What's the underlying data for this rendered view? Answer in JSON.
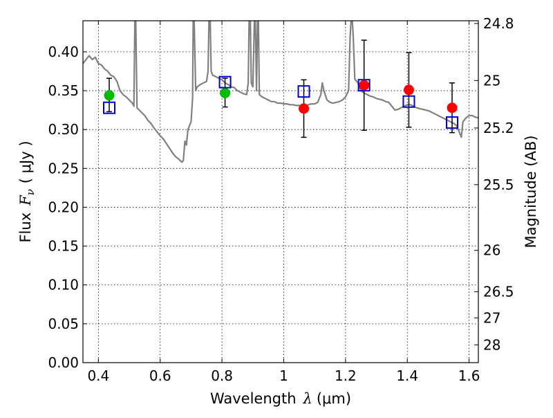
{
  "chart_data": {
    "type": "scatter",
    "xlabel": "Wavelength",
    "xlabel_symbol": "λ",
    "xlabel_unit": "(μm)",
    "ylabel": "Flux",
    "ylabel_symbol": "F",
    "ylabel_subscript": "ν",
    "ylabel_unit": "( μJy )",
    "y2label": "Magnitude (AB)",
    "xlim": [
      0.35,
      1.63
    ],
    "ylim": [
      0.0,
      0.44
    ],
    "grid": true,
    "x_ticks": [
      {
        "value": 0.4,
        "label": "0.4"
      },
      {
        "value": 0.6,
        "label": "0.6"
      },
      {
        "value": 0.8,
        "label": "0.8"
      },
      {
        "value": 1.0,
        "label": "1"
      },
      {
        "value": 1.2,
        "label": "1.2"
      },
      {
        "value": 1.4,
        "label": "1.4"
      },
      {
        "value": 1.6,
        "label": "1.6"
      }
    ],
    "y_ticks": [
      {
        "value": 0.0,
        "label": "0.00"
      },
      {
        "value": 0.05,
        "label": "0.05"
      },
      {
        "value": 0.1,
        "label": "0.10"
      },
      {
        "value": 0.15,
        "label": "0.15"
      },
      {
        "value": 0.2,
        "label": "0.20"
      },
      {
        "value": 0.25,
        "label": "0.25"
      },
      {
        "value": 0.3,
        "label": "0.30"
      },
      {
        "value": 0.35,
        "label": "0.35"
      },
      {
        "value": 0.4,
        "label": "0.40"
      }
    ],
    "y2_ticks": [
      {
        "mag": 24.8,
        "label": "24.8"
      },
      {
        "mag": 25.0,
        "label": "25"
      },
      {
        "mag": 25.2,
        "label": "25.2"
      },
      {
        "mag": 25.5,
        "label": "25.5"
      },
      {
        "mag": 26.0,
        "label": "26"
      },
      {
        "mag": 26.5,
        "label": "26.5"
      },
      {
        "mag": 27.0,
        "label": "27"
      },
      {
        "mag": 28.0,
        "label": "28"
      }
    ],
    "spectrum": {
      "color": "#808080",
      "points": [
        [
          0.35,
          0.385
        ],
        [
          0.36,
          0.39
        ],
        [
          0.37,
          0.395
        ],
        [
          0.38,
          0.39
        ],
        [
          0.39,
          0.393
        ],
        [
          0.4,
          0.385
        ],
        [
          0.41,
          0.383
        ],
        [
          0.42,
          0.378
        ],
        [
          0.43,
          0.375
        ],
        [
          0.44,
          0.37
        ],
        [
          0.45,
          0.368
        ],
        [
          0.46,
          0.362
        ],
        [
          0.47,
          0.35
        ],
        [
          0.48,
          0.345
        ],
        [
          0.49,
          0.342
        ],
        [
          0.5,
          0.338
        ],
        [
          0.51,
          0.334
        ],
        [
          0.515,
          0.33
        ],
        [
          0.518,
          0.44
        ],
        [
          0.521,
          0.44
        ],
        [
          0.525,
          0.328
        ],
        [
          0.53,
          0.326
        ],
        [
          0.54,
          0.322
        ],
        [
          0.55,
          0.318
        ],
        [
          0.56,
          0.312
        ],
        [
          0.57,
          0.308
        ],
        [
          0.58,
          0.302
        ],
        [
          0.59,
          0.297
        ],
        [
          0.6,
          0.292
        ],
        [
          0.61,
          0.288
        ],
        [
          0.62,
          0.282
        ],
        [
          0.63,
          0.276
        ],
        [
          0.64,
          0.27
        ],
        [
          0.65,
          0.265
        ],
        [
          0.66,
          0.262
        ],
        [
          0.67,
          0.258
        ],
        [
          0.675,
          0.26
        ],
        [
          0.68,
          0.285
        ],
        [
          0.685,
          0.28
        ],
        [
          0.69,
          0.3
        ],
        [
          0.7,
          0.31
        ],
        [
          0.705,
          0.34
        ],
        [
          0.707,
          0.44
        ],
        [
          0.71,
          0.44
        ],
        [
          0.715,
          0.35
        ],
        [
          0.72,
          0.355
        ],
        [
          0.73,
          0.358
        ],
        [
          0.74,
          0.36
        ],
        [
          0.75,
          0.362
        ],
        [
          0.755,
          0.375
        ],
        [
          0.758,
          0.44
        ],
        [
          0.762,
          0.44
        ],
        [
          0.765,
          0.375
        ],
        [
          0.77,
          0.37
        ],
        [
          0.78,
          0.368
        ],
        [
          0.79,
          0.366
        ],
        [
          0.8,
          0.364
        ],
        [
          0.81,
          0.36
        ],
        [
          0.82,
          0.358
        ],
        [
          0.83,
          0.355
        ],
        [
          0.84,
          0.354
        ],
        [
          0.85,
          0.35
        ],
        [
          0.86,
          0.348
        ],
        [
          0.87,
          0.346
        ],
        [
          0.88,
          0.345
        ],
        [
          0.885,
          0.36
        ],
        [
          0.888,
          0.44
        ],
        [
          0.892,
          0.44
        ],
        [
          0.895,
          0.36
        ],
        [
          0.9,
          0.355
        ],
        [
          0.905,
          0.44
        ],
        [
          0.908,
          0.44
        ],
        [
          0.912,
          0.35
        ],
        [
          0.915,
          0.44
        ],
        [
          0.918,
          0.44
        ],
        [
          0.921,
          0.345
        ],
        [
          0.93,
          0.342
        ],
        [
          0.94,
          0.34
        ],
        [
          0.95,
          0.338
        ],
        [
          0.96,
          0.336
        ],
        [
          0.97,
          0.336
        ],
        [
          0.98,
          0.334
        ],
        [
          0.99,
          0.334
        ],
        [
          1.0,
          0.333
        ],
        [
          1.01,
          0.333
        ],
        [
          1.02,
          0.332
        ],
        [
          1.03,
          0.332
        ],
        [
          1.04,
          0.331
        ],
        [
          1.05,
          0.331
        ],
        [
          1.06,
          0.33
        ],
        [
          1.07,
          0.33
        ],
        [
          1.08,
          0.332
        ],
        [
          1.09,
          0.333
        ],
        [
          1.1,
          0.333
        ],
        [
          1.11,
          0.335
        ],
        [
          1.12,
          0.345
        ],
        [
          1.125,
          0.36
        ],
        [
          1.13,
          0.35
        ],
        [
          1.14,
          0.338
        ],
        [
          1.15,
          0.335
        ],
        [
          1.16,
          0.334
        ],
        [
          1.17,
          0.335
        ],
        [
          1.18,
          0.336
        ],
        [
          1.19,
          0.338
        ],
        [
          1.2,
          0.342
        ],
        [
          1.21,
          0.35
        ],
        [
          1.215,
          0.42
        ],
        [
          1.218,
          0.44
        ],
        [
          1.222,
          0.44
        ],
        [
          1.225,
          0.42
        ],
        [
          1.23,
          0.365
        ],
        [
          1.24,
          0.36
        ],
        [
          1.25,
          0.35
        ],
        [
          1.26,
          0.347
        ],
        [
          1.27,
          0.345
        ],
        [
          1.28,
          0.343
        ],
        [
          1.29,
          0.342
        ],
        [
          1.3,
          0.34
        ],
        [
          1.31,
          0.339
        ],
        [
          1.32,
          0.338
        ],
        [
          1.33,
          0.336
        ],
        [
          1.34,
          0.335
        ],
        [
          1.35,
          0.33
        ],
        [
          1.36,
          0.325
        ],
        [
          1.37,
          0.326
        ],
        [
          1.38,
          0.328
        ],
        [
          1.39,
          0.33
        ],
        [
          1.4,
          0.332
        ],
        [
          1.41,
          0.332
        ],
        [
          1.42,
          0.33
        ],
        [
          1.43,
          0.328
        ],
        [
          1.44,
          0.327
        ],
        [
          1.45,
          0.326
        ],
        [
          1.46,
          0.325
        ],
        [
          1.47,
          0.324
        ],
        [
          1.48,
          0.322
        ],
        [
          1.49,
          0.32
        ],
        [
          1.5,
          0.318
        ],
        [
          1.51,
          0.316
        ],
        [
          1.52,
          0.314
        ],
        [
          1.53,
          0.312
        ],
        [
          1.54,
          0.31
        ],
        [
          1.55,
          0.308
        ],
        [
          1.56,
          0.305
        ],
        [
          1.57,
          0.295
        ],
        [
          1.575,
          0.29
        ],
        [
          1.58,
          0.31
        ],
        [
          1.59,
          0.315
        ],
        [
          1.6,
          0.318
        ],
        [
          1.61,
          0.318
        ],
        [
          1.62,
          0.316
        ],
        [
          1.63,
          0.315
        ]
      ]
    },
    "observed": [
      {
        "x": 0.435,
        "y": 0.344,
        "yerr_low": 0.323,
        "yerr_high": 0.366,
        "color": "#00bb00"
      },
      {
        "x": 0.81,
        "y": 0.347,
        "yerr_low": 0.329,
        "yerr_high": 0.366,
        "color": "#00bb00"
      },
      {
        "x": 1.065,
        "y": 0.327,
        "yerr_low": 0.29,
        "yerr_high": 0.364,
        "color": "#ff0000"
      },
      {
        "x": 1.26,
        "y": 0.357,
        "yerr_low": 0.299,
        "yerr_high": 0.415,
        "color": "#ff0000"
      },
      {
        "x": 1.405,
        "y": 0.351,
        "yerr_low": 0.303,
        "yerr_high": 0.399,
        "color": "#ff0000"
      },
      {
        "x": 1.545,
        "y": 0.328,
        "yerr_low": 0.296,
        "yerr_high": 0.36,
        "color": "#ff0000"
      }
    ],
    "model": {
      "color": "#0000cc",
      "points": [
        {
          "x": 0.435,
          "y": 0.328
        },
        {
          "x": 0.81,
          "y": 0.361
        },
        {
          "x": 1.065,
          "y": 0.349
        },
        {
          "x": 1.26,
          "y": 0.357
        },
        {
          "x": 1.405,
          "y": 0.336
        },
        {
          "x": 1.545,
          "y": 0.309
        }
      ]
    }
  }
}
